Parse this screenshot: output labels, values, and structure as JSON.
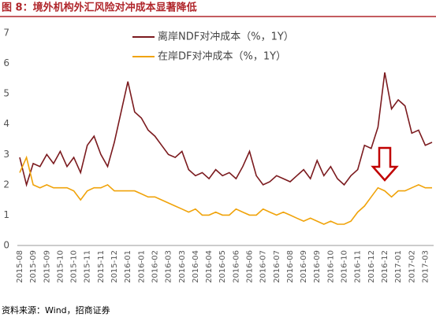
{
  "chart_data": {
    "type": "line",
    "title": "图 8：境外机构外汇风险对冲成本显著降低",
    "source": "资料来源：Wind，招商证券",
    "categories": [
      "2015-08",
      null,
      "2015-09",
      null,
      "2015-09",
      null,
      "2015-10",
      null,
      "2015-10",
      null,
      "2015-11",
      null,
      "2015-11",
      null,
      "2015-12",
      null,
      "2016-01",
      null,
      "2016-01",
      null,
      "2016-02",
      null,
      "2016-03",
      null,
      "2016-03",
      null,
      "2016-04",
      null,
      "2016-04",
      null,
      "2016-05",
      null,
      "2016-06",
      null,
      "2016-06",
      null,
      "2016-07",
      null,
      "2016-07",
      null,
      "2016-08",
      null,
      "2016-09",
      null,
      "2016-09",
      null,
      "2016-10",
      null,
      "2016-10",
      null,
      "2016-11",
      null,
      "2016-12",
      null,
      "2016-12",
      null,
      "2017-01",
      null,
      "2017-02",
      null,
      "2017-03",
      null
    ],
    "series": [
      {
        "name": "离岸NDF对冲成本（%，1Y）",
        "color": "#7b1a1e",
        "values": [
          2.9,
          2.0,
          2.7,
          2.6,
          3.0,
          2.7,
          3.1,
          2.6,
          2.9,
          2.4,
          3.3,
          3.6,
          3.0,
          2.6,
          3.4,
          4.4,
          5.4,
          4.4,
          4.2,
          3.8,
          3.6,
          3.3,
          3.0,
          2.9,
          3.1,
          2.5,
          2.3,
          2.4,
          2.2,
          2.5,
          2.3,
          2.4,
          2.2,
          2.6,
          3.1,
          2.3,
          2.0,
          2.1,
          2.3,
          2.2,
          2.1,
          2.3,
          2.5,
          2.2,
          2.8,
          2.3,
          2.6,
          2.2,
          2.0,
          2.3,
          2.5,
          3.3,
          3.2,
          3.9,
          5.7,
          4.5,
          4.8,
          4.6,
          3.7,
          3.8,
          3.3,
          3.4
        ]
      },
      {
        "name": "在岸DF对冲成本（%，1Y）",
        "color": "#f0a30a",
        "values": [
          2.4,
          2.9,
          2.0,
          1.9,
          2.0,
          1.9,
          1.9,
          1.9,
          1.8,
          1.5,
          1.8,
          1.9,
          1.9,
          2.0,
          1.8,
          1.8,
          1.8,
          1.8,
          1.7,
          1.6,
          1.6,
          1.5,
          1.4,
          1.3,
          1.2,
          1.1,
          1.2,
          1.0,
          1.0,
          1.1,
          1.0,
          1.0,
          1.2,
          1.1,
          1.0,
          1.0,
          1.2,
          1.1,
          1.0,
          1.1,
          1.0,
          0.9,
          0.8,
          0.9,
          0.8,
          0.7,
          0.8,
          0.7,
          0.7,
          0.8,
          1.1,
          1.3,
          1.6,
          1.9,
          1.8,
          1.6,
          1.8,
          1.8,
          1.9,
          2.0,
          1.9,
          1.9
        ]
      }
    ],
    "ylim": [
      0,
      7
    ],
    "yticks": [
      0,
      1,
      2,
      3,
      4,
      5,
      6,
      7
    ],
    "legend": "top"
  }
}
